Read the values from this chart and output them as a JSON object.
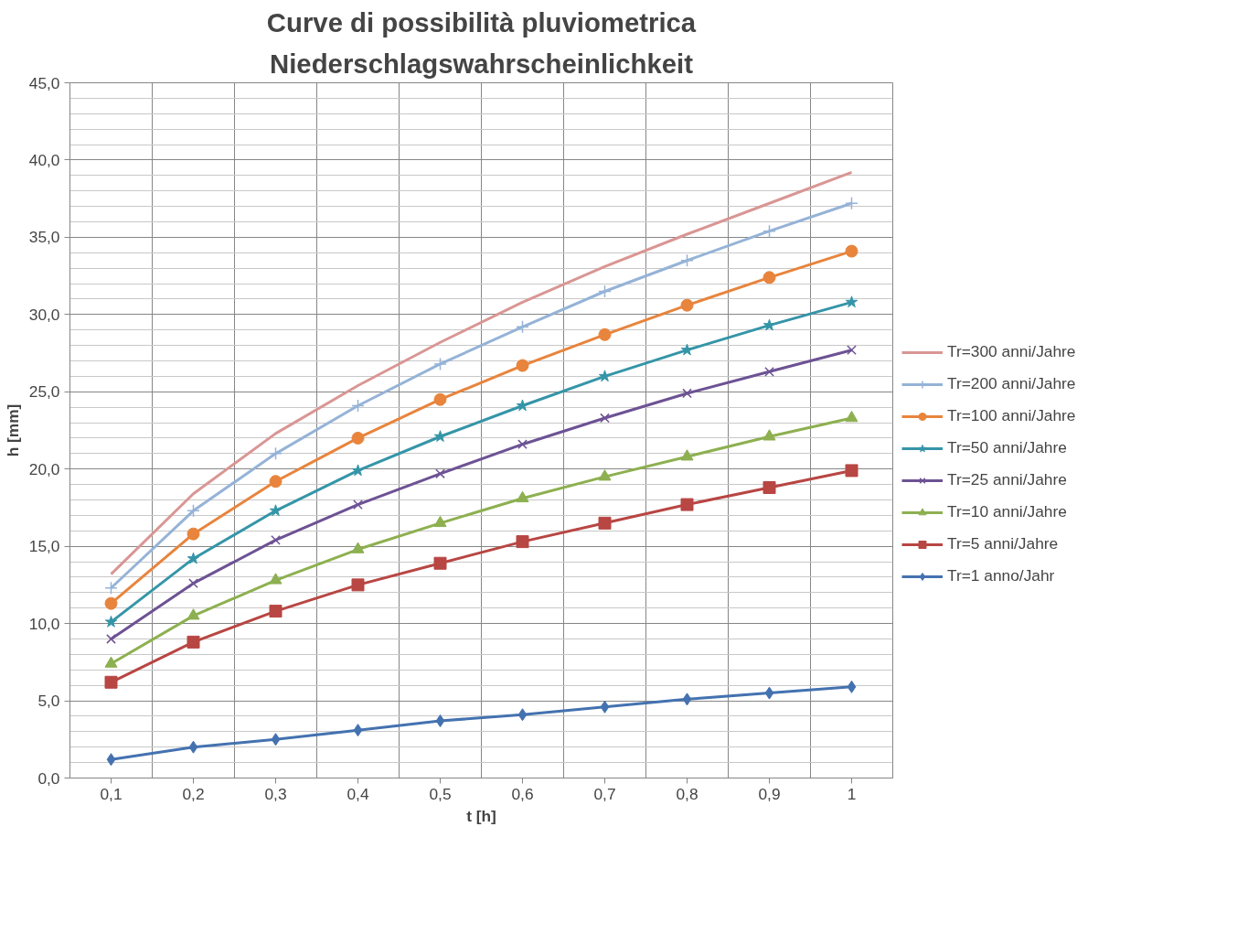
{
  "chart_data": {
    "type": "line",
    "title": "Curve di possibilità pluviometrica",
    "subtitle": "Niederschlagswahrscheinlichkeit",
    "xlabel": "t [h]",
    "ylabel": "h [mm]",
    "categories": [
      "0,1",
      "0,2",
      "0,3",
      "0,4",
      "0,5",
      "0,6",
      "0,7",
      "0,8",
      "0,9",
      "1"
    ],
    "ylim": [
      0,
      45
    ],
    "yticks": [
      {
        "value": 0,
        "label": "0,0"
      },
      {
        "value": 5,
        "label": "5,0"
      },
      {
        "value": 10,
        "label": "10,0"
      },
      {
        "value": 15,
        "label": "15,0"
      },
      {
        "value": 20,
        "label": "20,0"
      },
      {
        "value": 25,
        "label": "25,0"
      },
      {
        "value": 30,
        "label": "30,0"
      },
      {
        "value": 35,
        "label": "35,0"
      },
      {
        "value": 40,
        "label": "40,0"
      },
      {
        "value": 45,
        "label": "45,0"
      }
    ],
    "grid": true,
    "legend": "right",
    "series": [
      {
        "name": "Tr=300 anni/Jahre",
        "color": "#d99694",
        "marker": "none",
        "values": [
          13.2,
          18.4,
          22.3,
          25.4,
          28.2,
          30.8,
          33.1,
          35.2,
          37.2,
          39.2
        ]
      },
      {
        "name": "Tr=200 anni/Jahre",
        "color": "#95b3d7",
        "marker": "cross",
        "values": [
          12.3,
          17.3,
          21.0,
          24.1,
          26.8,
          29.2,
          31.5,
          33.5,
          35.4,
          37.2
        ]
      },
      {
        "name": "Tr=100 anni/Jahre",
        "color": "#e8843c",
        "marker": "circle",
        "values": [
          11.3,
          15.8,
          19.2,
          22.0,
          24.5,
          26.7,
          28.7,
          30.6,
          32.4,
          34.1
        ]
      },
      {
        "name": "Tr=50 anni/Jahre",
        "color": "#3595a8",
        "marker": "star",
        "values": [
          10.1,
          14.2,
          17.3,
          19.9,
          22.1,
          24.1,
          26.0,
          27.7,
          29.3,
          30.8
        ]
      },
      {
        "name": "Tr=25 anni/Jahre",
        "color": "#6d5294",
        "marker": "x",
        "values": [
          9.0,
          12.6,
          15.4,
          17.7,
          19.7,
          21.6,
          23.3,
          24.9,
          26.3,
          27.7
        ]
      },
      {
        "name": "Tr=10 anni/Jahre",
        "color": "#8db050",
        "marker": "triangle",
        "values": [
          7.4,
          10.5,
          12.8,
          14.8,
          16.5,
          18.1,
          19.5,
          20.8,
          22.1,
          23.3
        ]
      },
      {
        "name": "Tr=5 anni/Jahre",
        "color": "#b84643",
        "marker": "square",
        "values": [
          6.2,
          8.8,
          10.8,
          12.5,
          13.9,
          15.3,
          16.5,
          17.7,
          18.8,
          19.9
        ]
      },
      {
        "name": "Tr=1 anno/Jahr",
        "color": "#4472b0",
        "marker": "diamond",
        "values": [
          1.2,
          2.0,
          2.5,
          3.1,
          3.7,
          4.1,
          4.6,
          5.1,
          5.5,
          5.9
        ]
      }
    ]
  }
}
